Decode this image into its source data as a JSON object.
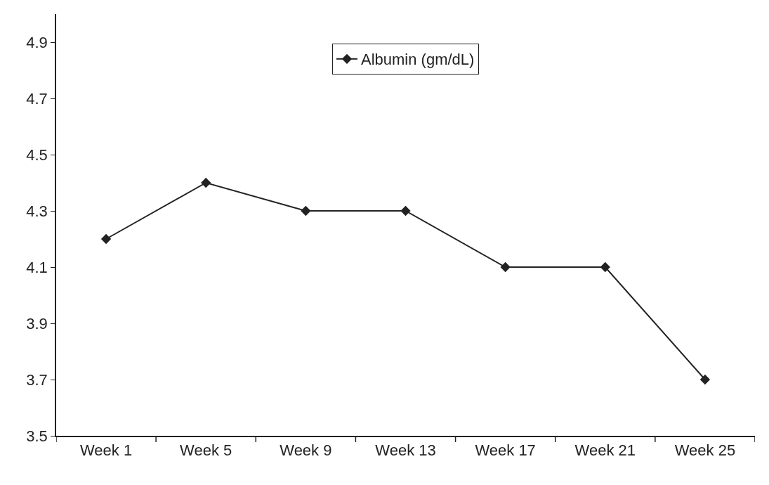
{
  "chart_data": {
    "type": "line",
    "categories": [
      "Week 1",
      "Week 5",
      "Week 9",
      "Week 13",
      "Week 17",
      "Week 21",
      "Week 25"
    ],
    "series": [
      {
        "name": "Albumin (gm/dL)",
        "color": "#222222",
        "values": [
          4.2,
          4.4,
          4.3,
          4.3,
          4.1,
          4.1,
          3.7
        ]
      }
    ],
    "ylim": [
      3.5,
      5.0
    ],
    "yticks": [
      3.5,
      3.7,
      3.9,
      4.1,
      4.3,
      4.5,
      4.7,
      4.9
    ],
    "legend": "top",
    "marker": "diamond",
    "line_style": "solid"
  }
}
